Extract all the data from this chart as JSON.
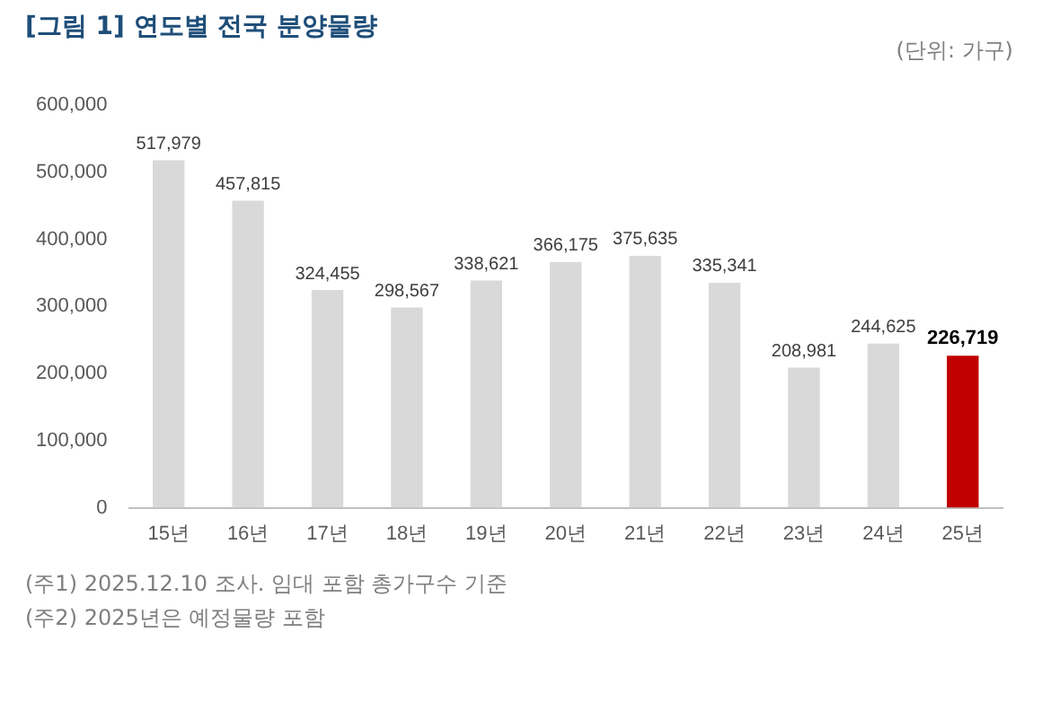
{
  "chart_data": {
    "type": "bar",
    "title": "[그림 1] 연도별 전국 분양물량",
    "subtitle": "(단위: 가구)",
    "categories": [
      "15년",
      "16년",
      "17년",
      "18년",
      "19년",
      "20년",
      "21년",
      "22년",
      "23년",
      "24년",
      "25년"
    ],
    "values": [
      517979,
      457815,
      324455,
      298567,
      338621,
      366175,
      375635,
      335341,
      208981,
      244625,
      226719
    ],
    "value_labels": [
      "517,979",
      "457,815",
      "324,455",
      "298,567",
      "338,621",
      "366,175",
      "375,635",
      "335,341",
      "208,981",
      "244,625",
      "226,719"
    ],
    "colors": [
      "#d9d9d9",
      "#d9d9d9",
      "#d9d9d9",
      "#d9d9d9",
      "#d9d9d9",
      "#d9d9d9",
      "#d9d9d9",
      "#d9d9d9",
      "#d9d9d9",
      "#d9d9d9",
      "#c00000"
    ],
    "ylim": [
      0,
      600000
    ],
    "yticks": [
      0,
      {
        "value": 100000,
        "label": "100,000"
      },
      {
        "value": 200000,
        "label": "200,000"
      },
      {
        "value": 300000,
        "label": "300,000"
      },
      {
        "value": 400000,
        "label": "400,000"
      },
      {
        "value": 500000,
        "label": "500,000"
      },
      {
        "value": 600000,
        "label": "600,000"
      }
    ],
    "grid": false,
    "legend": false,
    "annotations": [
      "(주1) 2025.12.10 조사. 임대 포함 총가구수 기준",
      "(주2) 2025년은 예정물량 포함"
    ]
  }
}
